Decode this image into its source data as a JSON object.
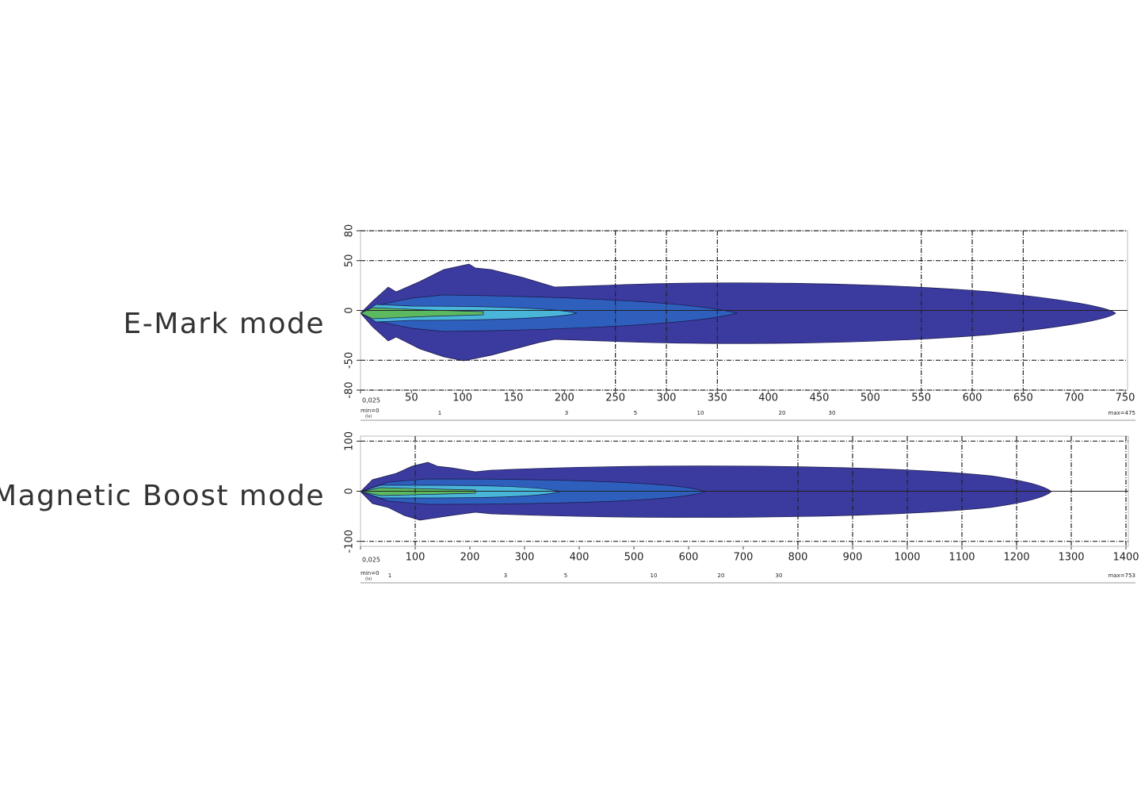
{
  "chart_data": [
    {
      "type": "contour",
      "title": "E-Mark mode",
      "xlim": [
        0,
        750
      ],
      "ylim": [
        -80,
        80
      ],
      "xticks": [
        {
          "value": 0,
          "label": "0,025"
        },
        50,
        100,
        150,
        200,
        250,
        300,
        350,
        400,
        450,
        500,
        550,
        600,
        650,
        700,
        750
      ],
      "yticks": [
        80,
        50,
        0,
        -50,
        -80
      ],
      "xgrid": [
        250,
        300,
        350,
        550,
        600,
        650
      ],
      "scale": {
        "min_label": "min=0",
        "unit": "(lx)",
        "ticks": [
          1,
          3,
          5,
          10,
          20,
          30
        ],
        "max_label": "max=475"
      }
    },
    {
      "type": "contour",
      "title": "Magnetic Boost mode",
      "xlim": [
        0,
        1400
      ],
      "ylim": [
        -110,
        110
      ],
      "xticks": [
        {
          "value": 0,
          "label": "0,025"
        },
        100,
        200,
        300,
        400,
        500,
        600,
        700,
        800,
        900,
        1000,
        1100,
        1200,
        1300,
        1400
      ],
      "yticks": [
        100,
        0,
        -100
      ],
      "xgrid": [
        100,
        800,
        900,
        1000,
        1100,
        1200,
        1300,
        1400
      ],
      "scale": {
        "min_label": "min=0",
        "unit": "(lx)",
        "ticks": [
          1,
          3,
          5,
          10,
          20,
          30
        ],
        "max_label": "max=753"
      }
    }
  ]
}
